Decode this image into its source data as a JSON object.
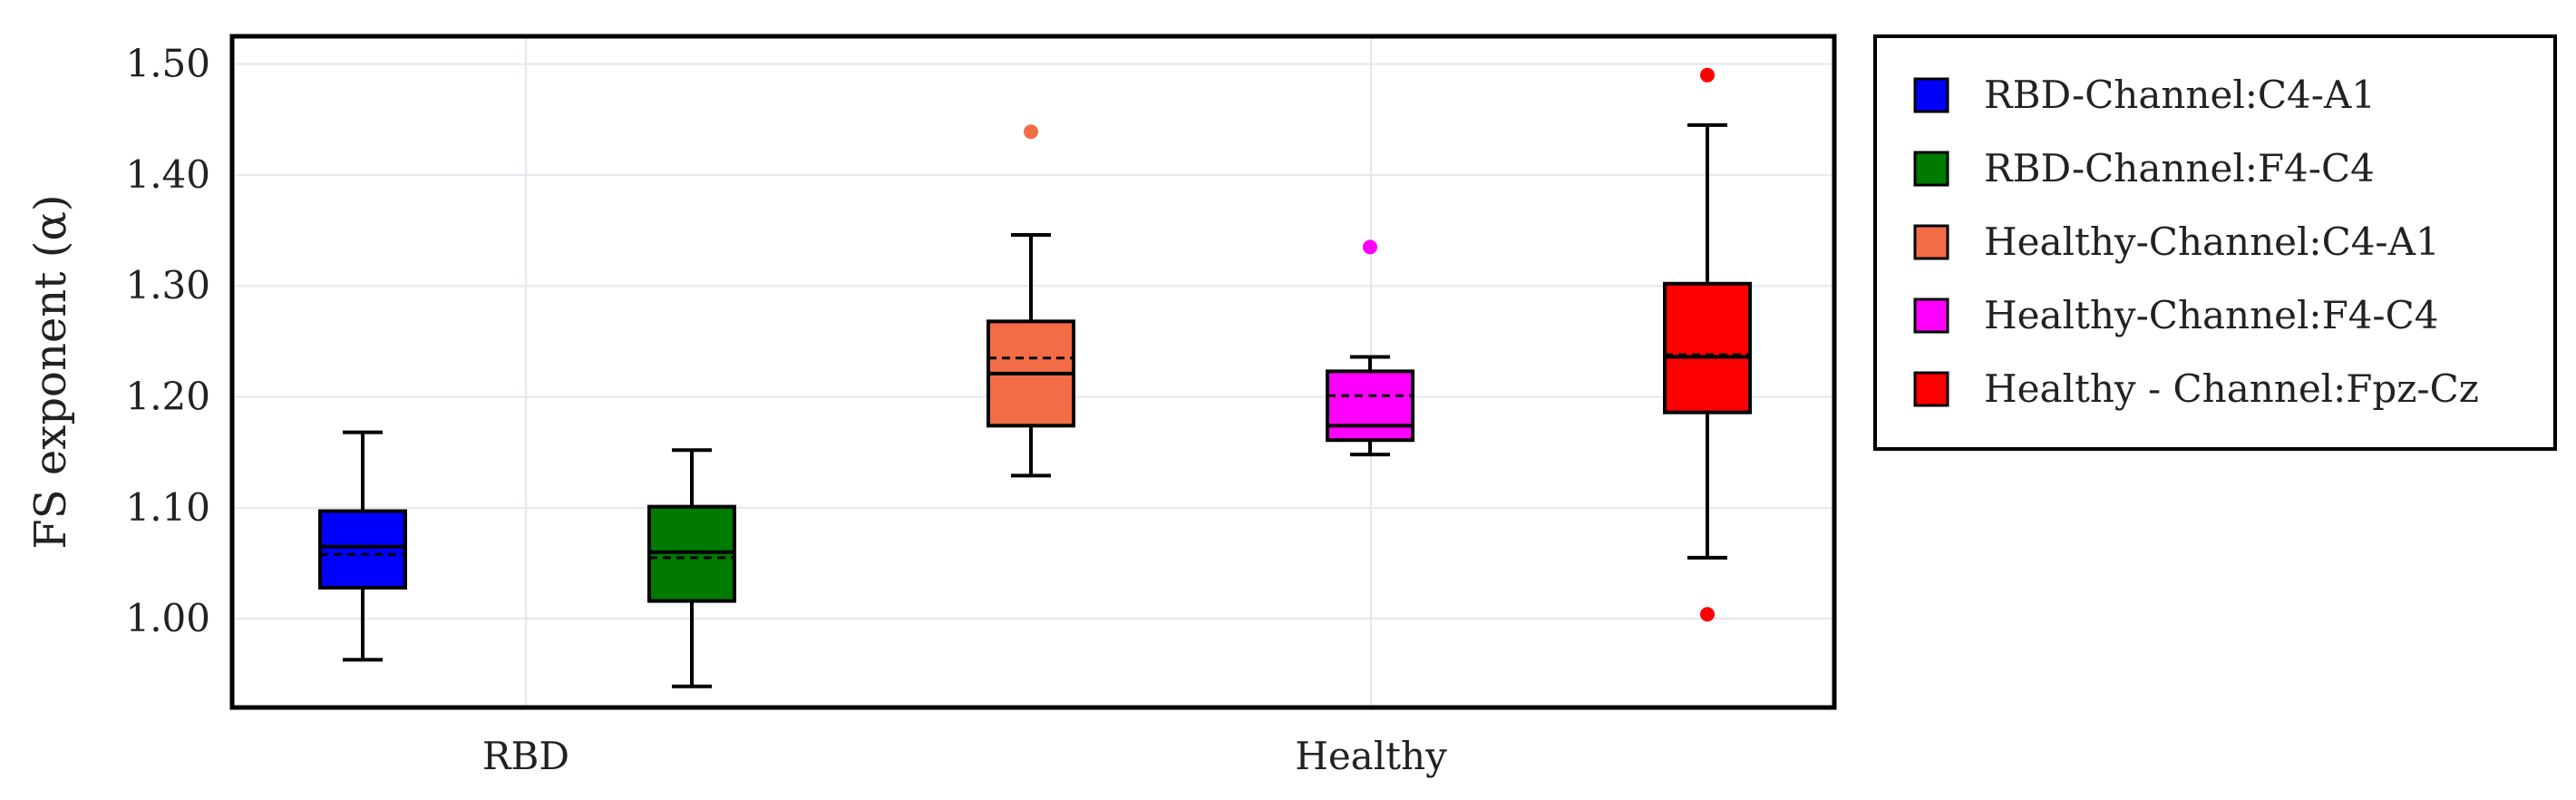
{
  "chart_data": {
    "type": "box",
    "title": "",
    "xlabel": "",
    "ylabel": "FS exponent (α)",
    "ylim": [
      0.92,
      1.525
    ],
    "yticks": [
      1.0,
      1.1,
      1.2,
      1.3,
      1.4,
      1.5
    ],
    "ytick_labels": [
      "1.00",
      "1.10",
      "1.20",
      "1.30",
      "1.40",
      "1.50"
    ],
    "groups": [
      "RBD",
      "Healthy"
    ],
    "grid": true,
    "legend_position": "right-outside",
    "series": [
      {
        "name": "RBD-Channel:C4-A1",
        "group": "RBD",
        "color": "#0000ff",
        "whisker_low": 0.963,
        "q1": 1.028,
        "median": 1.065,
        "mean": 1.058,
        "q3": 1.097,
        "whisker_high": 1.168,
        "outliers": []
      },
      {
        "name": "RBD-Channel:F4-C4",
        "group": "RBD",
        "color": "#007a00",
        "whisker_low": 0.939,
        "q1": 1.016,
        "median": 1.06,
        "mean": 1.055,
        "q3": 1.101,
        "whisker_high": 1.152,
        "outliers": []
      },
      {
        "name": "Healthy-Channel:C4-A1",
        "group": "Healthy",
        "color": "#f26d46",
        "whisker_low": 1.129,
        "q1": 1.174,
        "median": 1.221,
        "mean": 1.235,
        "q3": 1.268,
        "whisker_high": 1.346,
        "outliers": [
          1.439
        ]
      },
      {
        "name": "Healthy-Channel:F4-C4",
        "group": "Healthy",
        "color": "#ff00ff",
        "whisker_low": 1.148,
        "q1": 1.161,
        "median": 1.174,
        "mean": 1.201,
        "q3": 1.223,
        "whisker_high": 1.236,
        "outliers": [
          1.335
        ]
      },
      {
        "name": "Healthy - Channel:Fpz-Cz",
        "group": "Healthy",
        "color": "#ff0000",
        "whisker_low": 1.055,
        "q1": 1.186,
        "median": 1.236,
        "mean": 1.238,
        "q3": 1.302,
        "whisker_high": 1.445,
        "outliers": [
          1.49,
          1.004
        ]
      }
    ]
  }
}
